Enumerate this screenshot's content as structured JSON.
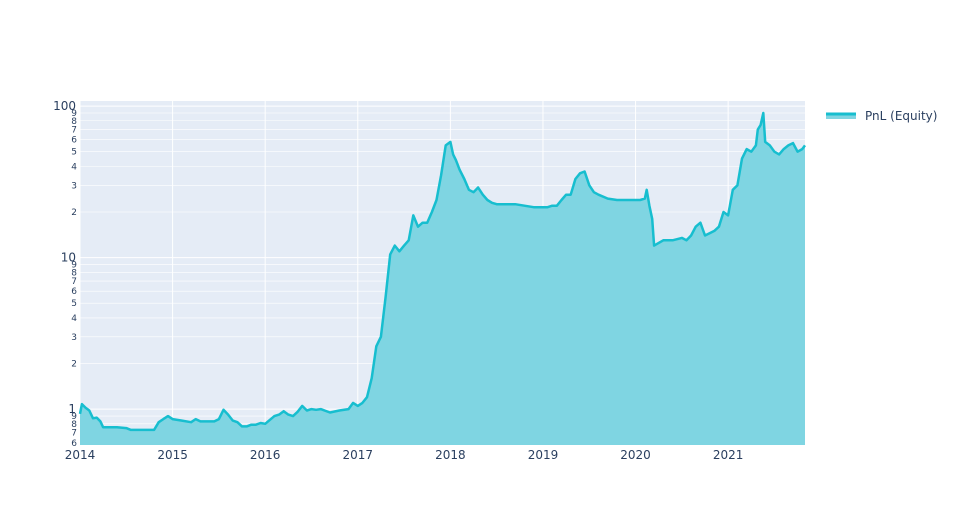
{
  "chart_data": {
    "type": "area",
    "title": "",
    "xlabel": "",
    "ylabel": "",
    "y_scale": "log",
    "ylim": [
      0.58,
      108
    ],
    "xlim": [
      2014.0,
      2021.83
    ],
    "grid": true,
    "legend_position": "top-right",
    "colors": {
      "line": "#17becf",
      "fill": "#7fd5e2",
      "plot_bg": "#e5ecf6",
      "grid": "#ffffff",
      "text": "#2a3f5f"
    },
    "x_ticks": [
      {
        "value": 2014,
        "label": "2014"
      },
      {
        "value": 2015,
        "label": "2015"
      },
      {
        "value": 2016,
        "label": "2016"
      },
      {
        "value": 2017,
        "label": "2017"
      },
      {
        "value": 2018,
        "label": "2018"
      },
      {
        "value": 2019,
        "label": "2019"
      },
      {
        "value": 2020,
        "label": "2020"
      },
      {
        "value": 2021,
        "label": "2021"
      }
    ],
    "y_major_ticks": [
      {
        "value": 1,
        "label": "1"
      },
      {
        "value": 10,
        "label": "10"
      },
      {
        "value": 100,
        "label": "100"
      }
    ],
    "y_minor_ticks": [
      {
        "value": 0.6,
        "label": "6"
      },
      {
        "value": 0.7,
        "label": "7"
      },
      {
        "value": 0.8,
        "label": "8"
      },
      {
        "value": 0.9,
        "label": "9"
      },
      {
        "value": 2,
        "label": "2"
      },
      {
        "value": 3,
        "label": "3"
      },
      {
        "value": 4,
        "label": "4"
      },
      {
        "value": 5,
        "label": "5"
      },
      {
        "value": 6,
        "label": "6"
      },
      {
        "value": 7,
        "label": "7"
      },
      {
        "value": 8,
        "label": "8"
      },
      {
        "value": 9,
        "label": "9"
      },
      {
        "value": 20,
        "label": "2"
      },
      {
        "value": 30,
        "label": "3"
      },
      {
        "value": 40,
        "label": "4"
      },
      {
        "value": 50,
        "label": "5"
      },
      {
        "value": 60,
        "label": "6"
      },
      {
        "value": 70,
        "label": "7"
      },
      {
        "value": 80,
        "label": "8"
      },
      {
        "value": 90,
        "label": "9"
      }
    ],
    "series": [
      {
        "name": "PnL (Equity)",
        "x": [
          2014.0,
          2014.02,
          2014.06,
          2014.1,
          2014.14,
          2014.18,
          2014.22,
          2014.25,
          2014.3,
          2014.4,
          2014.5,
          2014.55,
          2014.6,
          2014.7,
          2014.8,
          2014.85,
          2014.9,
          2014.95,
          2015.0,
          2015.1,
          2015.2,
          2015.25,
          2015.3,
          2015.4,
          2015.45,
          2015.5,
          2015.55,
          2015.6,
          2015.65,
          2015.7,
          2015.75,
          2015.8,
          2015.85,
          2015.9,
          2015.95,
          2016.0,
          2016.1,
          2016.15,
          2016.2,
          2016.25,
          2016.3,
          2016.35,
          2016.4,
          2016.45,
          2016.5,
          2016.55,
          2016.6,
          2016.7,
          2016.8,
          2016.9,
          2016.95,
          2017.0,
          2017.05,
          2017.1,
          2017.15,
          2017.2,
          2017.25,
          2017.3,
          2017.35,
          2017.4,
          2017.45,
          2017.5,
          2017.55,
          2017.6,
          2017.65,
          2017.7,
          2017.75,
          2017.8,
          2017.85,
          2017.9,
          2017.95,
          2018.0,
          2018.03,
          2018.06,
          2018.1,
          2018.15,
          2018.2,
          2018.25,
          2018.3,
          2018.35,
          2018.4,
          2018.45,
          2018.5,
          2018.6,
          2018.7,
          2018.8,
          2018.9,
          2019.0,
          2019.05,
          2019.1,
          2019.15,
          2019.2,
          2019.25,
          2019.3,
          2019.35,
          2019.4,
          2019.45,
          2019.5,
          2019.55,
          2019.6,
          2019.7,
          2019.8,
          2019.9,
          2020.0,
          2020.05,
          2020.1,
          2020.12,
          2020.15,
          2020.18,
          2020.2,
          2020.3,
          2020.4,
          2020.5,
          2020.55,
          2020.6,
          2020.65,
          2020.7,
          2020.75,
          2020.8,
          2020.85,
          2020.9,
          2020.95,
          2021.0,
          2021.05,
          2021.1,
          2021.15,
          2021.2,
          2021.25,
          2021.3,
          2021.32,
          2021.35,
          2021.38,
          2021.4,
          2021.45,
          2021.5,
          2021.55,
          2021.6,
          2021.65,
          2021.7,
          2021.75,
          2021.8,
          2021.83
        ],
        "values": [
          0.93,
          1.08,
          1.02,
          0.98,
          0.87,
          0.88,
          0.83,
          0.76,
          0.76,
          0.76,
          0.75,
          0.73,
          0.73,
          0.73,
          0.73,
          0.82,
          0.86,
          0.9,
          0.86,
          0.84,
          0.82,
          0.86,
          0.83,
          0.83,
          0.83,
          0.86,
          0.99,
          0.92,
          0.84,
          0.82,
          0.77,
          0.77,
          0.79,
          0.79,
          0.81,
          0.8,
          0.9,
          0.92,
          0.97,
          0.92,
          0.9,
          0.96,
          1.05,
          0.98,
          1.0,
          0.99,
          1.0,
          0.95,
          0.98,
          1.0,
          1.1,
          1.05,
          1.1,
          1.2,
          1.6,
          2.6,
          3.0,
          5.5,
          10.5,
          12.0,
          11.0,
          12.0,
          13.0,
          19.0,
          16.0,
          17.0,
          17.0,
          20.0,
          24.0,
          35.0,
          55.0,
          58.0,
          48.0,
          44.0,
          38.0,
          33.0,
          28.0,
          27.0,
          29.0,
          26.0,
          24.0,
          23.0,
          22.5,
          22.5,
          22.5,
          22.0,
          21.5,
          21.5,
          21.5,
          22.0,
          22.0,
          24.0,
          26.0,
          26.0,
          33.0,
          36.0,
          37.0,
          30.0,
          27.0,
          26.0,
          24.5,
          24.0,
          24.0,
          24.0,
          24.0,
          24.5,
          28.0,
          22.0,
          18.0,
          12.0,
          13.0,
          13.0,
          13.5,
          13.0,
          14.0,
          16.0,
          17.0,
          14.0,
          14.5,
          15.0,
          16.0,
          20.0,
          19.0,
          28.0,
          30.0,
          45.0,
          52.0,
          50.0,
          55.0,
          70.0,
          75.0,
          90.0,
          58.0,
          55.0,
          50.0,
          48.0,
          52.0,
          55.0,
          57.0,
          50.0,
          52.0,
          55.0
        ]
      }
    ]
  }
}
